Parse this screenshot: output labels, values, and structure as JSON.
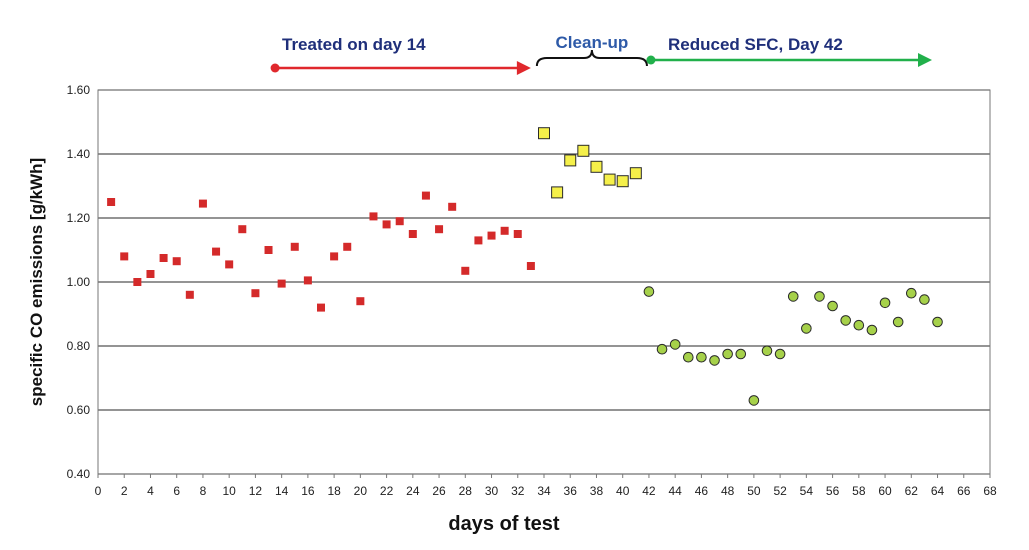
{
  "chart_data": {
    "type": "scatter",
    "xlabel": "days of test",
    "ylabel": "specific CO emissions  [g/kWh]",
    "xlim": [
      0,
      68
    ],
    "ylim": [
      0.4,
      1.6
    ],
    "xticks": [
      0,
      2,
      4,
      6,
      8,
      10,
      12,
      14,
      16,
      18,
      20,
      22,
      24,
      26,
      28,
      30,
      32,
      34,
      36,
      38,
      40,
      42,
      44,
      46,
      48,
      50,
      52,
      54,
      56,
      58,
      60,
      62,
      64,
      66,
      68
    ],
    "yticks": [
      0.4,
      0.6,
      0.8,
      1.0,
      1.2,
      1.4,
      1.6
    ],
    "ytick_labels": [
      "0.40",
      "0.60",
      "0.80",
      "1.00",
      "1.20",
      "1.40",
      "1.60"
    ],
    "grid": "horizontal",
    "series": [
      {
        "color": "#d42a2a",
        "marker": "square",
        "points": [
          [
            1,
            1.25
          ],
          [
            2,
            1.08
          ],
          [
            3,
            1.0
          ],
          [
            4,
            1.025
          ],
          [
            5,
            1.075
          ],
          [
            6,
            1.065
          ],
          [
            7,
            0.96
          ],
          [
            8,
            1.245
          ],
          [
            9,
            1.095
          ],
          [
            10,
            1.055
          ],
          [
            11,
            1.165
          ],
          [
            12,
            0.965
          ],
          [
            13,
            1.1
          ],
          [
            14,
            0.995
          ],
          [
            15,
            1.11
          ],
          [
            16,
            1.005
          ],
          [
            17,
            0.92
          ],
          [
            18,
            1.08
          ],
          [
            19,
            1.11
          ],
          [
            20,
            0.94
          ],
          [
            21,
            1.205
          ],
          [
            22,
            1.18
          ],
          [
            23,
            1.19
          ],
          [
            24,
            1.15
          ],
          [
            25,
            1.27
          ],
          [
            26,
            1.165
          ],
          [
            27,
            1.235
          ],
          [
            28,
            1.035
          ],
          [
            29,
            1.13
          ],
          [
            30,
            1.145
          ],
          [
            31,
            1.16
          ],
          [
            32,
            1.15
          ],
          [
            33,
            1.05
          ]
        ]
      },
      {
        "color": "#f5f04a",
        "marker": "square",
        "points": [
          [
            34,
            1.465
          ],
          [
            35,
            1.28
          ],
          [
            36,
            1.38
          ],
          [
            37,
            1.41
          ],
          [
            38,
            1.36
          ],
          [
            39,
            1.32
          ],
          [
            40,
            1.315
          ],
          [
            41,
            1.34
          ]
        ]
      },
      {
        "color": "#a6d14a",
        "marker": "circle",
        "points": [
          [
            42,
            0.97
          ],
          [
            43,
            0.79
          ],
          [
            44,
            0.805
          ],
          [
            45,
            0.765
          ],
          [
            46,
            0.765
          ],
          [
            47,
            0.755
          ],
          [
            48,
            0.775
          ],
          [
            49,
            0.775
          ],
          [
            50,
            0.63
          ],
          [
            51,
            0.785
          ],
          [
            52,
            0.775
          ],
          [
            53,
            0.955
          ],
          [
            54,
            0.855
          ],
          [
            55,
            0.955
          ],
          [
            56,
            0.925
          ],
          [
            57,
            0.88
          ],
          [
            58,
            0.865
          ],
          [
            59,
            0.85
          ],
          [
            60,
            0.935
          ],
          [
            61,
            0.875
          ],
          [
            62,
            0.965
          ],
          [
            63,
            0.945
          ],
          [
            64,
            0.875
          ]
        ]
      }
    ],
    "annotations": [
      {
        "text": "Treated on day 14",
        "color": "#1f2f7a",
        "arrow_color": "#e0282d",
        "arrow_from_x": 13.5,
        "arrow_to_x": 33
      },
      {
        "text": "Clean-up",
        "color": "#2e5aa8",
        "brace_from_x": 33,
        "brace_to_x": 42
      },
      {
        "text": "Reduced SFC,  Day 42",
        "color": "#1f2f7a",
        "arrow_color": "#21b04b",
        "arrow_from_x": 42,
        "arrow_to_x": 64
      }
    ]
  }
}
